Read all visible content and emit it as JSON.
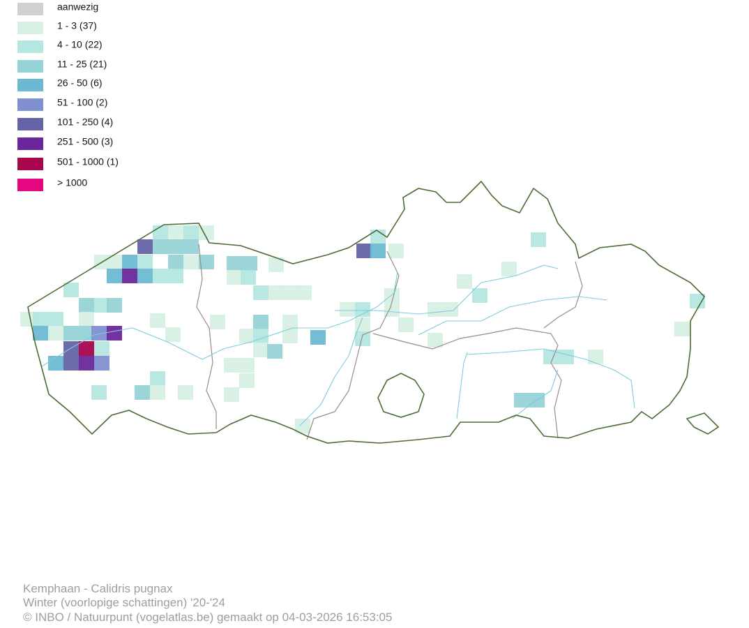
{
  "legend": {
    "items": [
      {
        "label": "aanwezig",
        "color": "#d0d0d0"
      },
      {
        "label": "1 - 3 (37)",
        "color": "#d6f0e3"
      },
      {
        "label": "4 - 10 (22)",
        "color": "#b5e6e0"
      },
      {
        "label": "11 - 25 (21)",
        "color": "#96d3d6"
      },
      {
        "label": "26 - 50 (6)",
        "color": "#6cb9d3"
      },
      {
        "label": "51 - 100 (2)",
        "color": "#8090d0"
      },
      {
        "label": "101 - 250 (4)",
        "color": "#6464a6"
      },
      {
        "label": "251 - 500 (3)",
        "color": "#6a279b"
      },
      {
        "label": "501 - 1000 (1)",
        "color": "#a8064e"
      },
      {
        "label": "> 1000",
        "color": "#e4077f"
      }
    ]
  },
  "footer": {
    "lines": [
      "Kemphaan - Calidris pugnax",
      "Winter (voorlopige schattingen) '20-'24",
      "© INBO / Natuurpunt (vogelatlas.be) gemaakt op 04-03-2026 16:53:05"
    ]
  }
}
